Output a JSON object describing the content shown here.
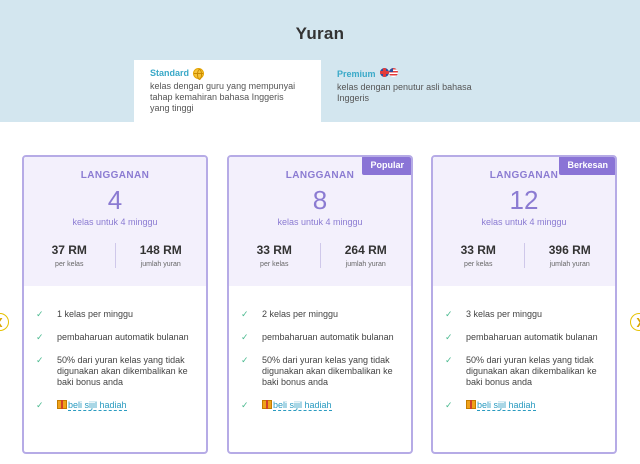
{
  "page": {
    "title": "Yuran"
  },
  "tabs": [
    {
      "label": "Standard",
      "icon": "globe-icon",
      "description": "kelas dengan guru yang mempunyai tahap kemahiran bahasa Inggeris yang tinggi"
    },
    {
      "label": "Premium",
      "icon": "flags-icon",
      "description": "kelas dengan penutur asli bahasa Inggeris"
    }
  ],
  "carousel": {
    "prev_icon": "chevron-left-icon",
    "next_icon": "chevron-right-icon"
  },
  "plans": [
    {
      "badge": "",
      "label": "LANGGANAN",
      "count": "4",
      "count_label": "kelas untuk 4 minggu",
      "price_per_class": "37 RM",
      "price_per_class_label": "per kelas",
      "total": "148 RM",
      "total_label": "jumlah yuran",
      "features": [
        "1 kelas per minggu",
        "pembaharuan automatik bulanan",
        "50% dari yuran kelas yang tidak digunakan akan dikembalikan ke baki bonus anda"
      ],
      "gift_link": "beli sijil hadiah"
    },
    {
      "badge": "Popular",
      "label": "LANGGANAN",
      "count": "8",
      "count_label": "kelas untuk 4 minggu",
      "price_per_class": "33 RM",
      "price_per_class_label": "per kelas",
      "total": "264 RM",
      "total_label": "jumlah yuran",
      "features": [
        "2 kelas per minggu",
        "pembaharuan automatik bulanan",
        "50% dari yuran kelas yang tidak digunakan akan dikembalikan ke baki bonus anda"
      ],
      "gift_link": "beli sijil hadiah"
    },
    {
      "badge": "Berkesan",
      "label": "LANGGANAN",
      "count": "12",
      "count_label": "kelas untuk 4 minggu",
      "price_per_class": "33 RM",
      "price_per_class_label": "per kelas",
      "total": "396 RM",
      "total_label": "jumlah yuran",
      "features": [
        "3 kelas per minggu",
        "pembaharuan automatik bulanan",
        "50% dari yuran kelas yang tidak digunakan akan dikembalikan ke baki bonus anda"
      ],
      "gift_link": "beli sijil hadiah"
    }
  ],
  "colors": {
    "accent": "#8b7bd2",
    "badge": "#8a74d6",
    "header_bg": "#d3e6ef",
    "tab_label": "#3aa9c8",
    "check": "#49b98f",
    "link": "#2a9bc0"
  }
}
